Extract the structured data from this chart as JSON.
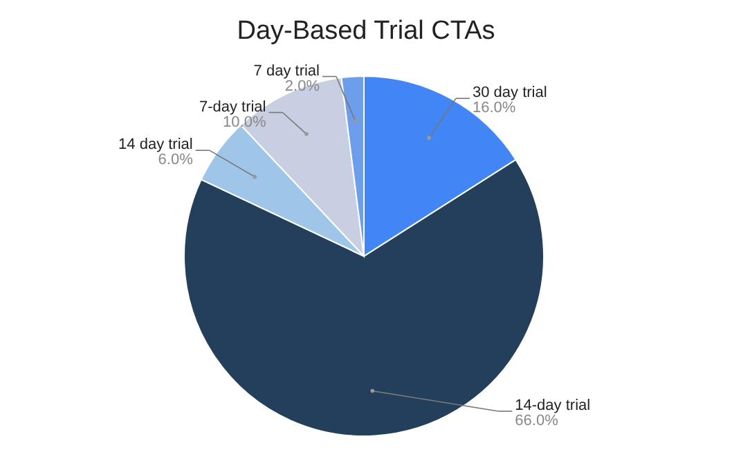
{
  "chart_data": {
    "type": "pie",
    "title": "Day-Based Trial CTAs",
    "categories": [
      "30 day trial",
      "14-day trial",
      "14 day trial",
      "7-day trial",
      "7 day trial"
    ],
    "values": [
      16,
      66,
      6,
      10,
      2
    ],
    "value_labels": [
      "16.0%",
      "66.0%",
      "6.0%",
      "10.0%",
      "2.0%"
    ],
    "colors": [
      "#4285f4",
      "#233f5b",
      "#9fc5e8",
      "#c9cfe2",
      "#6d9eeb"
    ]
  }
}
